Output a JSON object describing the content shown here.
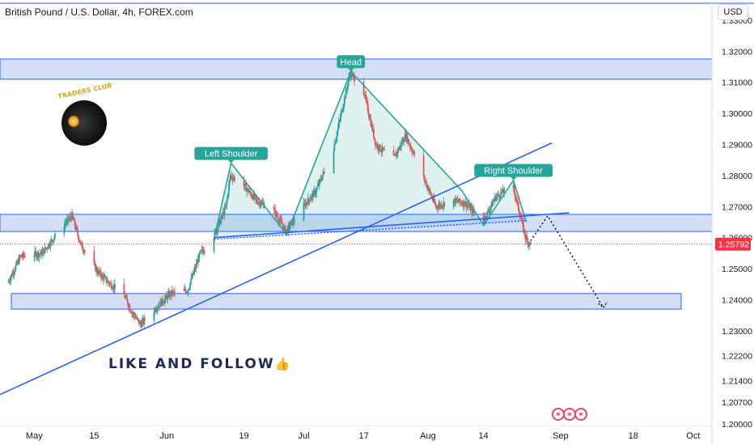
{
  "symbol": "British Pound / U.S. Dollar, 4h, FOREX.com",
  "currency": "USD",
  "watermark": "LIKE AND FOLLOW",
  "logo_text": "TRADERS CLUB",
  "price_tag": "1.25792",
  "colors": {
    "up": "#26a69a",
    "down": "#ef5350",
    "pattern": "#26a69a",
    "trendline": "#2962ff",
    "zone_fill": "#c5d3f5",
    "price_tag": "#f23645"
  },
  "chart_data": {
    "type": "candlestick",
    "ylim": [
      1.1995,
      1.3365
    ],
    "y_ticks": [
      "1.33000",
      "1.32000",
      "1.31000",
      "1.30000",
      "1.29000",
      "1.28000",
      "1.27000",
      "1.26000",
      "1.25000",
      "1.24000",
      "1.23000",
      "1.22200",
      "1.21400",
      "1.20700",
      "1.20000"
    ],
    "x_labels": [
      {
        "label": "May",
        "date": "2023-05-01"
      },
      {
        "label": "15",
        "date": "2023-05-15"
      },
      {
        "label": "Jun",
        "date": "2023-06-01"
      },
      {
        "label": "19",
        "date": "2023-06-19"
      },
      {
        "label": "Jul",
        "date": "2023-07-03"
      },
      {
        "label": "17",
        "date": "2023-07-17"
      },
      {
        "label": "Aug",
        "date": "2023-08-01"
      },
      {
        "label": "14",
        "date": "2023-08-14"
      },
      {
        "label": "Sep",
        "date": "2023-09-01"
      },
      {
        "label": "18",
        "date": "2023-09-18"
      },
      {
        "label": "Oct",
        "date": "2023-10-02"
      }
    ],
    "price_path": [
      [
        "2023-04-25",
        1.2455
      ],
      [
        "2023-04-28",
        1.254
      ],
      [
        "2023-05-03",
        1.255
      ],
      [
        "2023-05-08",
        1.264
      ],
      [
        "2023-05-10",
        1.267
      ],
      [
        "2023-05-12",
        1.258
      ],
      [
        "2023-05-16",
        1.249
      ],
      [
        "2023-05-19",
        1.245
      ],
      [
        "2023-05-22",
        1.242
      ],
      [
        "2023-05-24",
        1.236
      ],
      [
        "2023-05-26",
        1.232
      ],
      [
        "2023-05-30",
        1.238
      ],
      [
        "2023-06-02",
        1.242
      ],
      [
        "2023-06-06",
        1.243
      ],
      [
        "2023-06-09",
        1.255
      ],
      [
        "2023-06-12",
        1.26
      ],
      [
        "2023-06-15",
        1.27
      ],
      [
        "2023-06-16",
        1.28
      ],
      [
        "2023-06-19",
        1.277
      ],
      [
        "2023-06-22",
        1.272
      ],
      [
        "2023-06-26",
        1.269
      ],
      [
        "2023-06-29",
        1.262
      ],
      [
        "2023-07-03",
        1.27
      ],
      [
        "2023-07-06",
        1.275
      ],
      [
        "2023-07-10",
        1.288
      ],
      [
        "2023-07-14",
        1.313
      ],
      [
        "2023-07-17",
        1.308
      ],
      [
        "2023-07-20",
        1.29
      ],
      [
        "2023-07-24",
        1.285
      ],
      [
        "2023-07-27",
        1.293
      ],
      [
        "2023-07-31",
        1.28
      ],
      [
        "2023-08-03",
        1.27
      ],
      [
        "2023-08-07",
        1.272
      ],
      [
        "2023-08-10",
        1.271
      ],
      [
        "2023-08-14",
        1.265
      ],
      [
        "2023-08-17",
        1.273
      ],
      [
        "2023-08-21",
        1.277
      ],
      [
        "2023-08-24",
        1.26
      ],
      [
        "2023-08-25",
        1.2579
      ]
    ],
    "zones": [
      {
        "from": 1.311,
        "to": 1.3175
      },
      {
        "from": 1.262,
        "to": 1.2675
      },
      {
        "from": 1.237,
        "to": 1.242
      }
    ],
    "pattern_labels": [
      {
        "text": "Left Shoulder",
        "date": "2023-06-16",
        "price": 1.284
      },
      {
        "text": "Head",
        "date": "2023-07-14",
        "price": 1.3135
      },
      {
        "text": "Right Shoulder",
        "date": "2023-08-21",
        "price": 1.2785
      }
    ],
    "last_price": 1.25792
  }
}
